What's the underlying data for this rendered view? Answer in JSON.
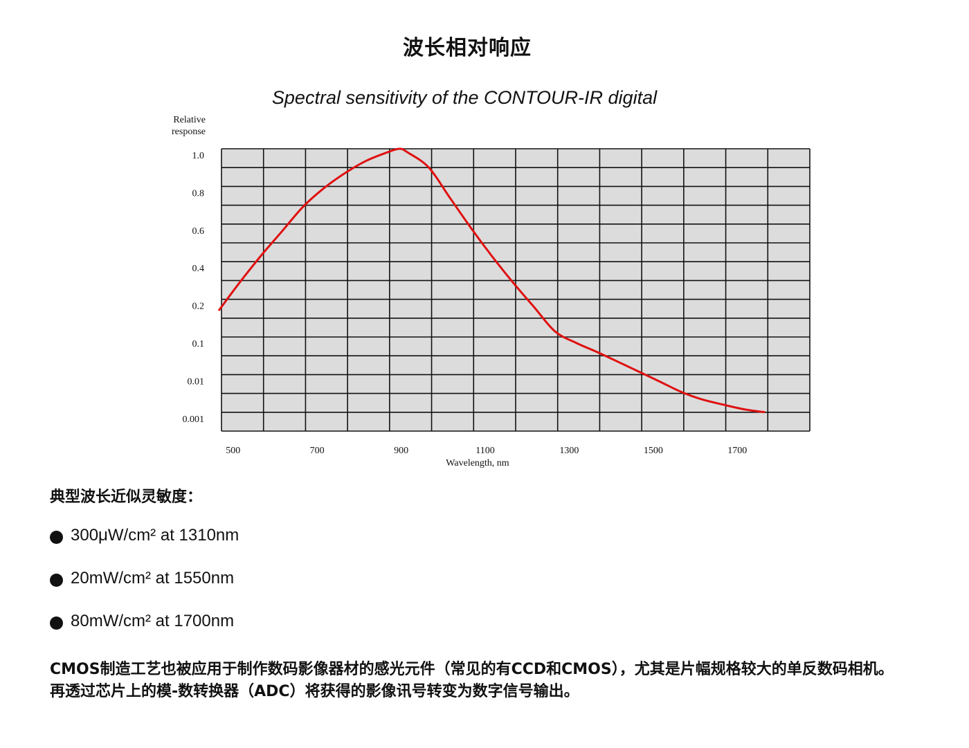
{
  "page": {
    "title": "波长相对响应",
    "section_heading": "典型波长近似灵敏度：",
    "bullets": [
      "300μW/cm² at 1310nm",
      "20mW/cm² at 1550nm",
      "80mW/cm² at 1700nm"
    ],
    "description": "CMOS制造工艺也被应用于制作数码影像器材的感光元件（常见的有CCD和CMOS），尤其是片幅规格较大的单反数码相机。再透过芯片上的模-数转换器（ADC）将获得的影像讯号转变为数字信号输出。"
  },
  "chart_data": {
    "type": "line",
    "title": "Spectral sensitivity of the CONTOUR-IR digital",
    "xlabel": "Wavelength, nm",
    "ylabel_lines": [
      "Relative",
      "response"
    ],
    "x_ticks": [
      "500",
      "700",
      "900",
      "1100",
      "1300",
      "1500",
      "1700"
    ],
    "y_ticks": [
      "1.0",
      "0.8",
      "0.6",
      "0.4",
      "0.2",
      "0.1",
      "0.01",
      "0.001"
    ],
    "grid": true,
    "background_color": "#dcdcdc",
    "line_color": "#e01010",
    "series": [
      {
        "x": [
          400,
          450,
          500,
          550,
          600,
          650,
          700,
          750,
          800,
          830,
          850,
          900,
          950,
          1000,
          1050,
          1100,
          1150,
          1200,
          1250,
          1300,
          1350,
          1400,
          1450,
          1500,
          1550,
          1600,
          1650,
          1700
        ],
        "y": [
          0.17,
          0.29,
          0.43,
          0.56,
          0.69,
          0.79,
          0.87,
          0.935,
          0.98,
          1.0,
          0.98,
          0.9,
          0.74,
          0.58,
          0.43,
          0.29,
          0.18,
          0.115,
          0.07,
          0.04,
          0.022,
          0.012,
          0.0065,
          0.0035,
          0.0022,
          0.0016,
          0.0012,
          0.001
        ]
      }
    ]
  }
}
